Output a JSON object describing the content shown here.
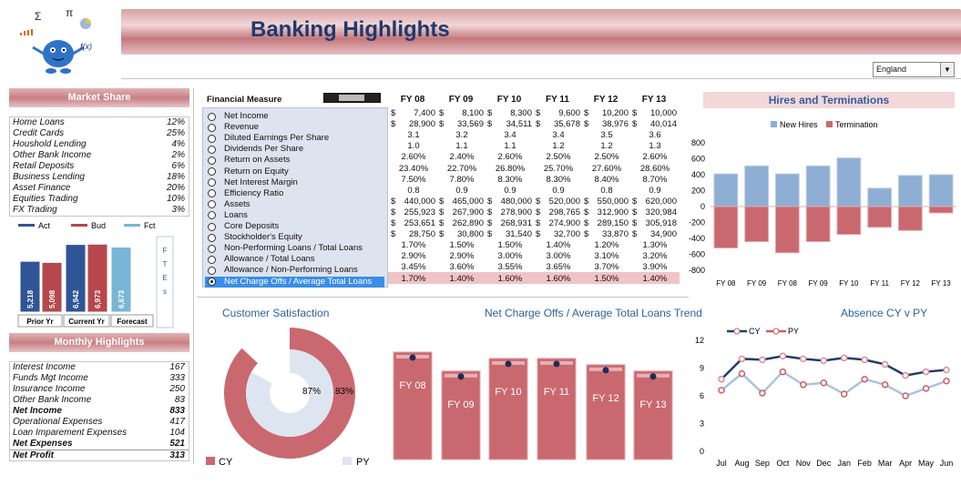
{
  "header": {
    "title": "Banking Highlights"
  },
  "region_select": {
    "value": "England"
  },
  "market_share": {
    "title": "Market Share",
    "items": [
      {
        "label": "Home Loans",
        "value": "12%"
      },
      {
        "label": "Credit Cards",
        "value": "25%"
      },
      {
        "label": "Houshold Lending",
        "value": "4%"
      },
      {
        "label": "Other Bank Income",
        "value": "2%"
      },
      {
        "label": "Retail Deposits",
        "value": "6%"
      },
      {
        "label": "Business Lending",
        "value": "18%"
      },
      {
        "label": "Asset Finance",
        "value": "20%"
      },
      {
        "label": "Equities Trading",
        "value": "10%"
      },
      {
        "label": "FX Trading",
        "value": "3%"
      }
    ]
  },
  "budget_chart": {
    "legend": [
      "Act",
      "Bud",
      "Fct"
    ],
    "bars": [
      {
        "label": "5,218",
        "value": 5218,
        "color": "#2f5597"
      },
      {
        "label": "5,098",
        "value": 5098,
        "color": "#b5474d"
      },
      {
        "label": "6,942",
        "value": 6942,
        "color": "#2f5597"
      },
      {
        "label": "6,973",
        "value": 6973,
        "color": "#b5474d"
      },
      {
        "label": "6,673",
        "value": 6673,
        "color": "#78b6d6"
      }
    ],
    "groups": [
      "Prior Yr",
      "Current Yr",
      "Forecast"
    ],
    "ftes_label": "F T E s"
  },
  "monthly_highlights": {
    "title": "Monthly Highlights",
    "items": [
      {
        "label": "Interest Income",
        "value": "167"
      },
      {
        "label": "Funds Mgt Income",
        "value": "333"
      },
      {
        "label": "Insurance Income",
        "value": "250"
      },
      {
        "label": "Other Bank Income",
        "value": "83"
      },
      {
        "label": "Net Income",
        "value": "833",
        "bold": true
      },
      {
        "label": "Operational Expenses",
        "value": "417"
      },
      {
        "label": "Loan Imparement Expenses",
        "value": "104"
      },
      {
        "label": "Net Expenses",
        "value": "521",
        "bold": true
      },
      {
        "label": "Net Profit",
        "value": "313",
        "bold": true
      }
    ]
  },
  "financials": {
    "header_label": "Financial Measure",
    "years": [
      "FY 08",
      "FY 09",
      "FY 10",
      "FY 11",
      "FY 12",
      "FY 13"
    ],
    "rows": [
      {
        "name": "Net Income",
        "cur": "$",
        "vals": [
          "7,400",
          "8,100",
          "8,300",
          "9,600",
          "10,200",
          "10,000"
        ]
      },
      {
        "name": "Revenue",
        "cur": "$",
        "vals": [
          "28,900",
          "33,569",
          "34,511",
          "35,678",
          "38,976",
          "40,014"
        ]
      },
      {
        "name": "Diluted Earnings Per Share",
        "cur": "",
        "vals": [
          "3.1",
          "3.2",
          "3.4",
          "3.4",
          "3.5",
          "3.6"
        ]
      },
      {
        "name": "Dividends Per Share",
        "cur": "",
        "vals": [
          "1.0",
          "1.1",
          "1.1",
          "1.2",
          "1.2",
          "1.3"
        ]
      },
      {
        "name": "Return on Assets",
        "cur": "",
        "vals": [
          "2.60%",
          "2.40%",
          "2.60%",
          "2.50%",
          "2.50%",
          "2.60%"
        ]
      },
      {
        "name": "Return on Equity",
        "cur": "",
        "vals": [
          "23.40%",
          "22.70%",
          "26.80%",
          "25.70%",
          "27.60%",
          "28.60%"
        ]
      },
      {
        "name": "Net Interest Margin",
        "cur": "",
        "vals": [
          "7.50%",
          "7.80%",
          "8.30%",
          "8.30%",
          "8.40%",
          "8.70%"
        ]
      },
      {
        "name": "Efficiency Ratio",
        "cur": "",
        "vals": [
          "0.8",
          "0.9",
          "0.9",
          "0.9",
          "0.8",
          "0.9"
        ]
      },
      {
        "name": "Assets",
        "cur": "$",
        "vals": [
          "440,000",
          "465,000",
          "480,000",
          "520,000",
          "550,000",
          "620,000"
        ]
      },
      {
        "name": "Loans",
        "cur": "$",
        "vals": [
          "255,923",
          "267,900",
          "278,900",
          "298,765",
          "312,900",
          "320,984"
        ]
      },
      {
        "name": "Core Deposits",
        "cur": "$",
        "vals": [
          "253,651",
          "262,890",
          "268,931",
          "274,900",
          "289,150",
          "305,918"
        ]
      },
      {
        "name": "Stockholder's Equity",
        "cur": "$",
        "vals": [
          "28,750",
          "30,800",
          "31,540",
          "32,700",
          "33,870",
          "34,900"
        ]
      },
      {
        "name": "Non-Performing Loans / Total Loans",
        "cur": "",
        "vals": [
          "1.70%",
          "1.50%",
          "1.50%",
          "1.40%",
          "1.20%",
          "1.30%"
        ]
      },
      {
        "name": "Allowance / Total Loans",
        "cur": "",
        "vals": [
          "2.90%",
          "2.90%",
          "3.00%",
          "3.00%",
          "3.10%",
          "3.20%"
        ]
      },
      {
        "name": "Allowance / Non-Performing Loans",
        "cur": "",
        "vals": [
          "3.45%",
          "3.60%",
          "3.55%",
          "3.65%",
          "3.70%",
          "3.90%"
        ]
      },
      {
        "name": "Net Charge Offs / Average Total Loans",
        "cur": "",
        "vals": [
          "1.70%",
          "1.40%",
          "1.60%",
          "1.60%",
          "1.50%",
          "1.40%"
        ],
        "selected": true
      }
    ]
  },
  "chart_data": [
    {
      "type": "bar",
      "title": "Hires and Terminations",
      "categories": [
        "FY 08",
        "FY 09",
        "FY 08",
        "FY 09",
        "FY 10",
        "FY 11",
        "FY 12",
        "FY 13"
      ],
      "series": [
        {
          "name": "New Hires",
          "values": [
            410,
            510,
            410,
            510,
            610,
            230,
            390,
            400
          ],
          "color": "#8eaed4"
        },
        {
          "name": "Termination",
          "values": [
            -520,
            -440,
            -580,
            -440,
            -350,
            -260,
            -300,
            -80
          ],
          "color": "#c9696f"
        }
      ],
      "ylim": [
        -800,
        800
      ],
      "yticks": [
        "800",
        "600",
        "400",
        "200",
        "0",
        "-200",
        "-400",
        "-600",
        "-800"
      ],
      "legend": "top"
    },
    {
      "type": "pie",
      "title": "Customer Satisfaction",
      "series": [
        {
          "name": "CY",
          "value": 87,
          "label": "87%",
          "color": "#c9696f"
        },
        {
          "name": "PY",
          "value": 83,
          "label": "83%",
          "color": "#dde5f1"
        }
      ],
      "legend": "bottom"
    },
    {
      "type": "bar",
      "title": "Net Charge Offs / Average Total Loans Trend",
      "categories": [
        "FY 08",
        "FY 09",
        "FY 10",
        "FY 11",
        "FY 12",
        "FY 13"
      ],
      "values": [
        1.7,
        1.4,
        1.6,
        1.6,
        1.5,
        1.4
      ],
      "ylim": [
        0,
        1.8
      ],
      "color": "#c9696f"
    },
    {
      "type": "line",
      "title": "Absence CY v PY",
      "categories": [
        "Jul",
        "Aug",
        "Sep",
        "Oct",
        "Nov",
        "Dec",
        "Jan",
        "Feb",
        "Mar",
        "Apr",
        "May",
        "Jun"
      ],
      "series": [
        {
          "name": "CY",
          "values": [
            7.8,
            10.0,
            9.9,
            10.3,
            10.0,
            9.8,
            10.1,
            9.9,
            9.4,
            8.2,
            8.6,
            8.8
          ],
          "color": "#1f3f6b"
        },
        {
          "name": "PY",
          "values": [
            6.6,
            8.4,
            6.3,
            8.6,
            7.2,
            7.4,
            6.2,
            7.8,
            7.2,
            6.0,
            6.8,
            7.6
          ],
          "color": "#d25b62"
        }
      ],
      "ylim": [
        0,
        12
      ],
      "yticks": [
        "12",
        "9",
        "6",
        "3",
        "0"
      ],
      "legend": "top-left"
    }
  ]
}
